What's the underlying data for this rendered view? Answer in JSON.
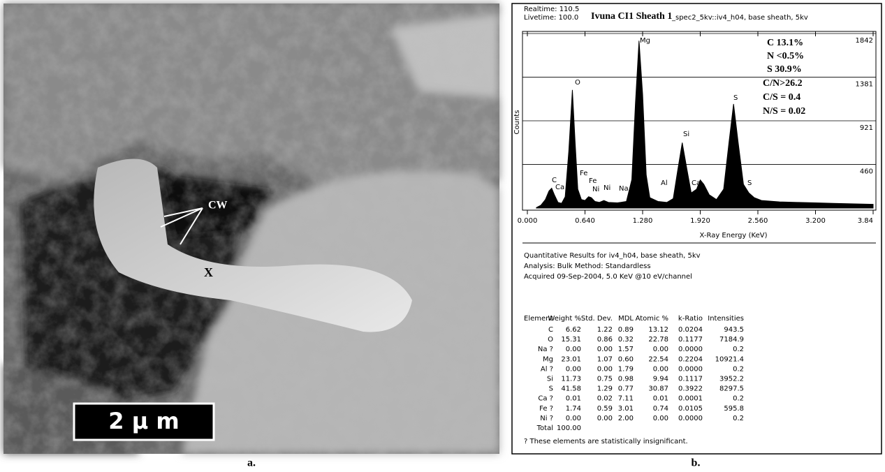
{
  "panel_a": {
    "caption": "a.",
    "labels": [
      "CW",
      "X"
    ],
    "scale_bar": "2 μ m"
  },
  "panel_b": {
    "caption": "b.",
    "header": [
      "Realtime: 110.5",
      "Livetime: 100.0"
    ],
    "sample": "Ivuna CI1 Sheath 1",
    "spec": "_spec2_5kv::iv4_h04, base sheath, 5kv",
    "chart_data": {
      "type": "area",
      "color": "#000000",
      "y_label": "Counts",
      "x_label": "X-Ray Energy (KeV)",
      "annotations": [
        "C 13.1%",
        "N <0.5%",
        "S 30.9%",
        "C/N>26.2",
        "C/S = 0.4",
        "N/S = 0.02"
      ],
      "peak_labels": [
        "C",
        "Ca",
        "O",
        "Fe",
        "Fe",
        "Ni",
        "Ni",
        "Na",
        "Mg",
        "Al",
        "Si",
        "Ca",
        "Ca",
        "S",
        "S"
      ],
      "x": [
        0.1,
        0.15,
        0.2,
        0.24,
        0.27,
        0.3,
        0.34,
        0.38,
        0.42,
        0.46,
        0.5,
        0.53,
        0.56,
        0.6,
        0.64,
        0.68,
        0.71,
        0.75,
        0.8,
        0.85,
        0.9,
        1.0,
        1.1,
        1.16,
        1.2,
        1.24,
        1.28,
        1.32,
        1.36,
        1.45,
        1.55,
        1.62,
        1.67,
        1.72,
        1.77,
        1.82,
        1.88,
        1.92,
        1.96,
        2.02,
        2.1,
        2.18,
        2.24,
        2.29,
        2.34,
        2.4,
        2.46,
        2.52,
        2.6,
        2.8,
        3.0,
        3.2,
        3.4,
        3.6,
        3.84
      ],
      "values": [
        5,
        30,
        90,
        180,
        210,
        140,
        60,
        50,
        120,
        600,
        1247,
        700,
        200,
        90,
        80,
        120,
        110,
        70,
        60,
        80,
        60,
        55,
        70,
        300,
        1100,
        1766,
        1200,
        350,
        110,
        70,
        60,
        100,
        400,
        690,
        420,
        160,
        200,
        297,
        250,
        140,
        90,
        200,
        700,
        1098,
        700,
        250,
        160,
        110,
        80,
        65,
        60,
        55,
        50,
        45,
        40
      ],
      "xlim": [
        0,
        3.84
      ],
      "xticks": [
        {
          "value": 0,
          "label": "0.000"
        },
        {
          "value": 0.64,
          "label": "0.640"
        },
        {
          "value": 1.28,
          "label": "1.280"
        },
        {
          "value": 1.92,
          "label": "1.920"
        },
        {
          "value": 2.56,
          "label": "2.560"
        },
        {
          "value": 3.2,
          "label": "3.200"
        },
        {
          "value": 3.84,
          "label": "3.84"
        }
      ],
      "ylim": [
        0,
        1842
      ],
      "yticks": [
        460,
        921,
        1381,
        1842
      ],
      "grid": true
    },
    "results": [
      "Quantitative Results for iv4_h04, base sheath, 5kv",
      "Analysis: Bulk    Method: Standardless",
      "Acquired 09-Sep-2004, 5.0 KeV @10 eV/channel"
    ],
    "table": {
      "header": [
        "Element",
        "Weight %",
        "Std. Dev.",
        "MDL",
        "Atomic %",
        "k-Ratio",
        "Intensities"
      ],
      "rows": [
        [
          "C",
          "6.62",
          "1.22",
          "0.89",
          "13.12",
          "0.0204",
          "943.5"
        ],
        [
          "O",
          "15.31",
          "0.86",
          "0.32",
          "22.78",
          "0.1177",
          "7184.9"
        ],
        [
          "Na ?",
          "0.00",
          "0.00",
          "1.57",
          "0.00",
          "0.0000",
          "0.2"
        ],
        [
          "Mg",
          "23.01",
          "1.07",
          "0.60",
          "22.54",
          "0.2204",
          "10921.4"
        ],
        [
          "Al ?",
          "0.00",
          "0.00",
          "1.79",
          "0.00",
          "0.0000",
          "0.2"
        ],
        [
          "Si",
          "11.73",
          "0.75",
          "0.98",
          "9.94",
          "0.1117",
          "3952.2"
        ],
        [
          "S",
          "41.58",
          "1.29",
          "0.77",
          "30.87",
          "0.3922",
          "8297.5"
        ],
        [
          "Ca ?",
          "0.01",
          "0.02",
          "7.11",
          "0.01",
          "0.0001",
          "0.2"
        ],
        [
          "Fe ?",
          "1.74",
          "0.59",
          "3.01",
          "0.74",
          "0.0105",
          "595.8"
        ],
        [
          "Ni ?",
          "0.00",
          "0.00",
          "2.00",
          "0.00",
          "0.0000",
          "0.2"
        ],
        [
          "Total",
          "100.00"
        ]
      ],
      "footnote": "? These elements are statistically insignificant."
    }
  }
}
